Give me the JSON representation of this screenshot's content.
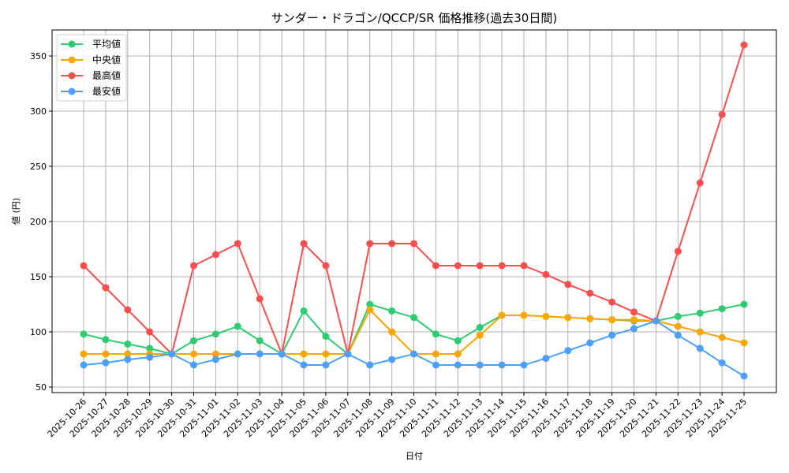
{
  "chart_data": {
    "type": "line",
    "title": "サンダー・ドラゴン/QCCP/SR 価格推移(過去30日間)",
    "xlabel": "日付",
    "ylabel": "値 (円)",
    "ylim": [
      45,
      375
    ],
    "yticks": [
      50,
      100,
      150,
      200,
      250,
      300,
      350
    ],
    "grid": true,
    "legend_position": "upper left",
    "x": [
      "2025-10-26",
      "2025-10-27",
      "2025-10-28",
      "2025-10-29",
      "2025-10-30",
      "2025-10-31",
      "2025-11-01",
      "2025-11-02",
      "2025-11-03",
      "2025-11-04",
      "2025-11-05",
      "2025-11-06",
      "2025-11-07",
      "2025-11-08",
      "2025-11-09",
      "2025-11-10",
      "2025-11-11",
      "2025-11-12",
      "2025-11-13",
      "2025-11-14",
      "2025-11-15",
      "2025-11-16",
      "2025-11-17",
      "2025-11-18",
      "2025-11-19",
      "2025-11-20",
      "2025-11-21",
      "2025-11-22",
      "2025-11-23",
      "2025-11-24",
      "2025-11-25"
    ],
    "series": [
      {
        "name": "平均値",
        "color": "#2ecc71",
        "values": [
          98,
          93,
          89,
          85,
          80,
          92,
          98,
          105,
          92,
          80,
          119,
          96,
          80,
          125,
          119,
          113,
          98,
          92,
          104,
          115,
          115,
          114,
          113,
          112,
          111,
          110,
          110,
          114,
          117,
          121,
          125
        ]
      },
      {
        "name": "中央値",
        "color": "#ffa500",
        "values": [
          80,
          80,
          80,
          80,
          80,
          80,
          80,
          80,
          80,
          80,
          80,
          80,
          80,
          120,
          100,
          80,
          80,
          80,
          97,
          115,
          115,
          114,
          113,
          112,
          111,
          111,
          110,
          105,
          100,
          95,
          90
        ]
      },
      {
        "name": "最高値",
        "color": "#ff4d4d",
        "values": [
          160,
          140,
          120,
          100,
          80,
          160,
          170,
          180,
          130,
          80,
          180,
          160,
          80,
          180,
          180,
          180,
          160,
          160,
          160,
          160,
          160,
          152,
          143,
          135,
          127,
          118,
          110,
          173,
          235,
          297,
          360
        ]
      },
      {
        "name": "最安値",
        "color": "#4d9fff",
        "values": [
          70,
          72,
          75,
          77,
          80,
          70,
          75,
          80,
          80,
          80,
          70,
          70,
          80,
          70,
          75,
          80,
          70,
          70,
          70,
          70,
          70,
          76,
          83,
          90,
          97,
          103,
          110,
          97,
          85,
          72,
          60
        ]
      }
    ]
  }
}
